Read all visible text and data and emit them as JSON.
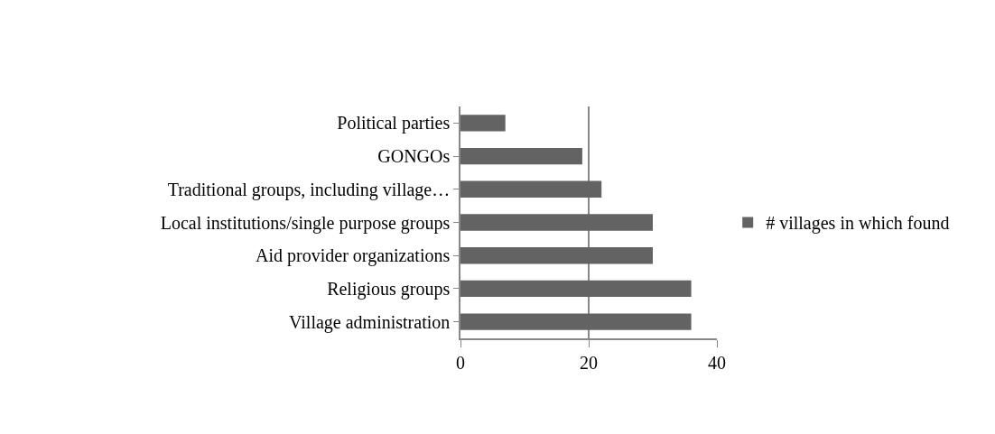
{
  "chart_data": {
    "type": "bar",
    "orientation": "horizontal",
    "categories": [
      "Political parties",
      "GONGOs",
      "Traditional groups, including village…",
      "Local institutions/single purpose groups",
      "Aid provider organizations",
      "Religious groups",
      "Village administration"
    ],
    "series": [
      {
        "name": "# villages in which found",
        "color": "#636363",
        "values": [
          7,
          19,
          22,
          30,
          30,
          36,
          36
        ]
      }
    ],
    "xlim": [
      0,
      40
    ],
    "xticks": [
      0,
      20,
      40
    ],
    "grid": "x",
    "legend": "right"
  }
}
